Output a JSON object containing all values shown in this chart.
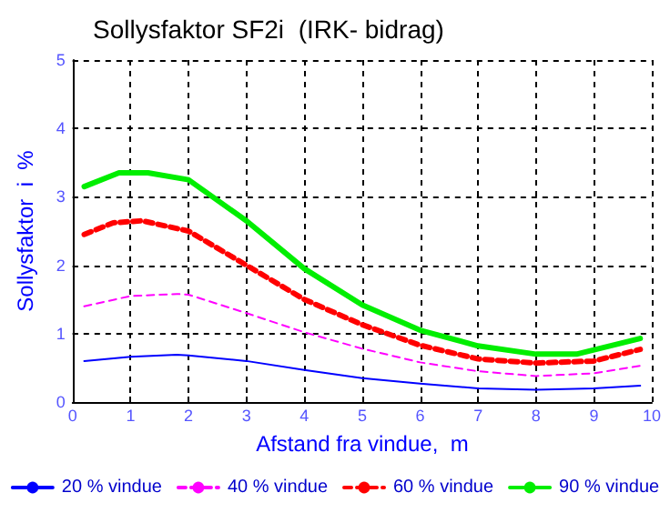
{
  "chart_data": {
    "type": "line",
    "title": "Sollysfaktor SF2i  (IRK- bidrag)",
    "xlabel": "Afstand fra vindue,  m",
    "ylabel": "Sollysfaktor  i  %",
    "xlim": [
      0,
      10
    ],
    "xticks": [
      0,
      1,
      2,
      3,
      4,
      5,
      6,
      7,
      8,
      9,
      10
    ],
    "ylim": [
      0,
      5
    ],
    "yticks": [
      0,
      1,
      2,
      3,
      4,
      5
    ],
    "grid": true,
    "legend": "bottom",
    "marker": "none",
    "series": [
      {
        "name": "20 % vindue",
        "color": "#0000ff",
        "line_style": "solid",
        "x": [
          0.2,
          1,
          1.8,
          2,
          3,
          4,
          5,
          6,
          7,
          8,
          9,
          9.8
        ],
        "values": [
          0.6,
          0.66,
          0.69,
          0.68,
          0.6,
          0.47,
          0.35,
          0.27,
          0.2,
          0.18,
          0.2,
          0.24
        ]
      },
      {
        "name": "40 % vindue",
        "color": "#ff00ff",
        "line_style": "dashed",
        "x": [
          0.2,
          1,
          1.8,
          2,
          3,
          4,
          5,
          6,
          7,
          8,
          9,
          9.8
        ],
        "values": [
          1.4,
          1.55,
          1.58,
          1.57,
          1.3,
          1.02,
          0.78,
          0.58,
          0.45,
          0.38,
          0.42,
          0.53
        ]
      },
      {
        "name": "60 % vindue",
        "color": "#ff0000",
        "line_style": "dashed",
        "x": [
          0.2,
          0.7,
          1.2,
          2,
          3,
          4,
          5,
          6,
          7,
          8,
          9,
          9.8
        ],
        "values": [
          2.45,
          2.62,
          2.65,
          2.5,
          2.0,
          1.5,
          1.13,
          0.83,
          0.63,
          0.57,
          0.6,
          0.77
        ]
      },
      {
        "name": "90 % vindue",
        "color": "#00ee00",
        "line_style": "solid",
        "x": [
          0.2,
          0.8,
          1.3,
          2,
          3,
          4,
          5,
          6,
          7,
          8,
          8.7,
          9.8
        ],
        "values": [
          3.15,
          3.35,
          3.35,
          3.25,
          2.65,
          1.95,
          1.42,
          1.05,
          0.82,
          0.7,
          0.7,
          0.93
        ]
      }
    ]
  }
}
